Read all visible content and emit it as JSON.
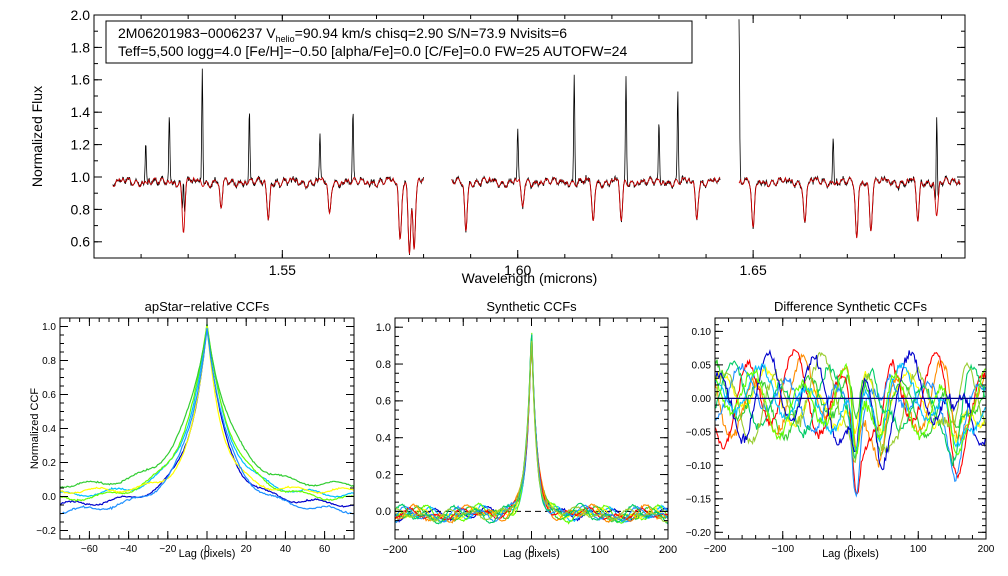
{
  "colors": {
    "observed": "#000000",
    "model": "#cc0000",
    "ccf_series": [
      "#0000cc",
      "#00bfff",
      "#66ff00",
      "#ffff00",
      "#32cd32",
      "#ff8c00",
      "#ff0000",
      "#1e90ff",
      "#00cc66",
      "#9acd32"
    ],
    "dashed": "#000000",
    "baseline": "#00008b"
  },
  "chart_data": [
    {
      "id": "spectrum",
      "type": "line",
      "title": "",
      "xlabel": "Wavelength (microns)",
      "ylabel": "Normalized Flux",
      "xlim": [
        1.51,
        1.695
      ],
      "ylim": [
        0.5,
        2.0
      ],
      "xticks": [
        1.55,
        1.6,
        1.65
      ],
      "xtick_labels": [
        "1.55",
        "1.60",
        "1.65"
      ],
      "yticks": [
        0.6,
        0.8,
        1.0,
        1.2,
        1.4,
        1.6,
        1.8,
        2.0
      ],
      "ytick_labels": [
        "0.6",
        "0.8",
        "1.0",
        "1.2",
        "1.4",
        "1.6",
        "1.8",
        "2.0"
      ],
      "annotation": {
        "line1_prefix": "2M06201983−0006237  V",
        "line1_sub": "helio",
        "line1_suffix": "=90.94 km/s  chisq=2.90  S/N=73.9  Nvisits=6",
        "line2": "Teff=5,500 logg=4.0 [Fe/H]=−0.50 [alpha/Fe]=0.0 [C/Fe]=0.0 FW=25 AUTOFW=24"
      },
      "chips": [
        [
          1.514,
          1.58
        ],
        [
          1.586,
          1.643
        ],
        [
          1.647,
          1.694
        ]
      ],
      "series": [
        {
          "name": "observed",
          "role": "data"
        },
        {
          "name": "model",
          "role": "fit"
        }
      ],
      "emission_spikes": [
        [
          1.521,
          1.24
        ],
        [
          1.526,
          1.43
        ],
        [
          1.529,
          1.31
        ],
        [
          1.533,
          1.72
        ],
        [
          1.543,
          1.42
        ],
        [
          1.558,
          1.28
        ],
        [
          1.565,
          1.42
        ],
        [
          1.6,
          1.33
        ],
        [
          1.612,
          1.67
        ],
        [
          1.623,
          1.66
        ],
        [
          1.63,
          1.35
        ],
        [
          1.634,
          1.55
        ],
        [
          1.647,
          2.0
        ],
        [
          1.667,
          1.29
        ],
        [
          1.689,
          1.62
        ]
      ],
      "absorption_lines": [
        [
          1.529,
          0.69
        ],
        [
          1.537,
          0.82
        ],
        [
          1.547,
          0.76
        ],
        [
          1.56,
          0.78
        ],
        [
          1.575,
          0.63
        ],
        [
          1.577,
          0.57
        ],
        [
          1.578,
          0.56
        ],
        [
          1.589,
          0.69
        ],
        [
          1.601,
          0.82
        ],
        [
          1.616,
          0.74
        ],
        [
          1.622,
          0.75
        ],
        [
          1.638,
          0.77
        ],
        [
          1.65,
          0.68
        ],
        [
          1.661,
          0.73
        ],
        [
          1.672,
          0.63
        ],
        [
          1.675,
          0.7
        ],
        [
          1.685,
          0.74
        ],
        [
          1.689,
          0.77
        ]
      ]
    },
    {
      "id": "apstar-ccf",
      "type": "line",
      "title": "apStar−relative CCFs",
      "xlabel": "Lag (pixels)",
      "ylabel": "Normalized CCF",
      "xlim": [
        -75,
        75
      ],
      "ylim": [
        -0.25,
        1.05
      ],
      "xticks": [
        -60,
        -40,
        -20,
        0,
        20,
        40,
        60
      ],
      "xtick_labels": [
        "−60",
        "−40",
        "−20",
        "0",
        "20",
        "40",
        "60"
      ],
      "yticks": [
        -0.2,
        0.0,
        0.2,
        0.4,
        0.6,
        0.8,
        1.0
      ],
      "ytick_labels": [
        "−0.2",
        "0.0",
        "0.2",
        "0.4",
        "0.6",
        "0.8",
        "1.0"
      ],
      "series_count": 6,
      "peak": {
        "lag": 0,
        "value": 1.0
      },
      "wing_levels_at_lag_40": [
        0.05,
        0.0,
        -0.05,
        -0.1
      ]
    },
    {
      "id": "synthetic-ccf",
      "type": "line",
      "title": "Synthetic CCFs",
      "xlabel": "Lag (pixels)",
      "ylabel": "",
      "xlim": [
        -200,
        200
      ],
      "ylim": [
        -0.15,
        1.05
      ],
      "xticks": [
        -200,
        -100,
        0,
        100,
        200
      ],
      "xtick_labels": [
        "−200",
        "−100",
        "0",
        "100",
        "200"
      ],
      "yticks": [
        0.0,
        0.2,
        0.4,
        0.6,
        0.8,
        1.0
      ],
      "ytick_labels": [
        "0.0",
        "0.2",
        "0.4",
        "0.6",
        "0.8",
        "1.0"
      ],
      "series_count": 10,
      "peak": {
        "lag": 0,
        "value": 1.0
      },
      "reference_line": {
        "y": 0.0,
        "style": "dashed"
      }
    },
    {
      "id": "difference-ccf",
      "type": "line",
      "title": "Difference Synthetic CCFs",
      "xlabel": "Lag (pixels)",
      "ylabel": "",
      "xlim": [
        -200,
        200
      ],
      "ylim": [
        -0.21,
        0.12
      ],
      "xticks": [
        -200,
        -100,
        0,
        100,
        200
      ],
      "xtick_labels": [
        "−200",
        "−100",
        "0",
        "100",
        "200"
      ],
      "yticks": [
        -0.2,
        -0.15,
        -0.1,
        -0.05,
        0.0,
        0.05,
        0.1
      ],
      "ytick_labels": [
        "−0.20",
        "−0.15",
        "−0.10",
        "−0.05",
        "0.00",
        "0.05",
        "0.10"
      ],
      "series_count": 10,
      "reference_line": {
        "y": 0.0,
        "style": "solid"
      }
    }
  ]
}
